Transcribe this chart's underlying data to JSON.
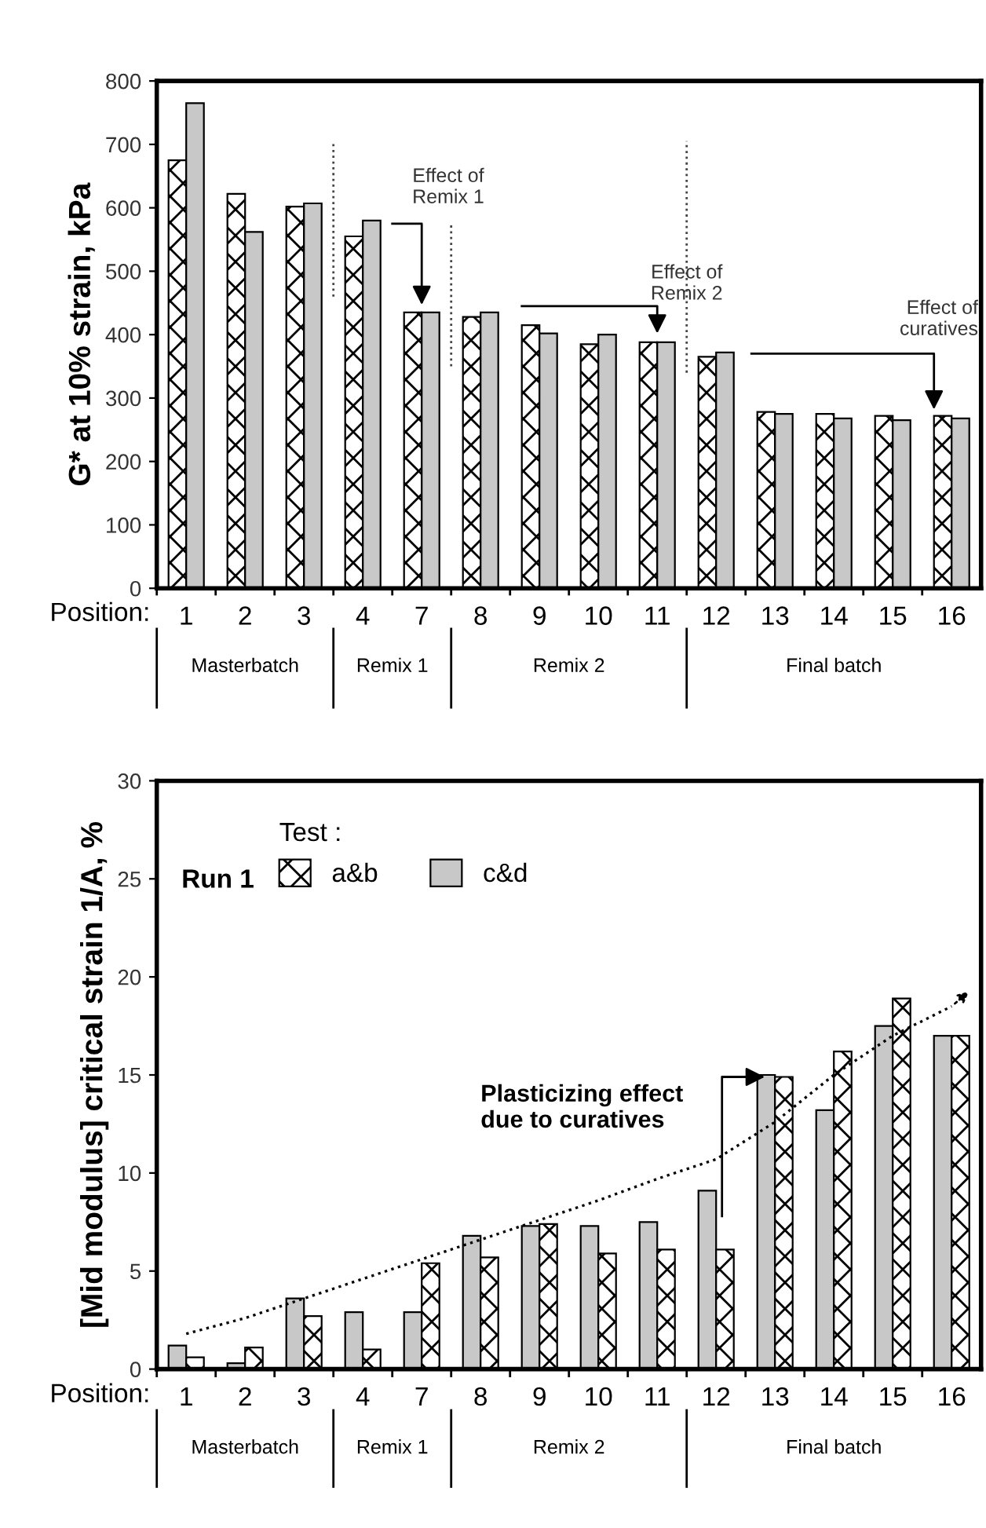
{
  "chart_data": [
    {
      "type": "bar",
      "ylabel": "G* at 10% strain, kPa",
      "xlabel": "Position:",
      "categories": [
        "1",
        "2",
        "3",
        "4",
        "7",
        "8",
        "9",
        "10",
        "11",
        "12",
        "13",
        "14",
        "15",
        "16"
      ],
      "ylim": [
        0,
        800
      ],
      "yticks": [
        0,
        100,
        200,
        300,
        400,
        500,
        600,
        700,
        800
      ],
      "grid": false,
      "series": [
        {
          "color": "#000000",
          "values": [
            675,
            622,
            602,
            555,
            435,
            428,
            415,
            385,
            388,
            365,
            278,
            275,
            272,
            272
          ]
        },
        {
          "color": "#c8c8c8",
          "values": [
            765,
            562,
            607,
            580,
            435,
            435,
            402,
            400,
            388,
            372,
            275,
            268,
            265,
            268
          ]
        }
      ],
      "annotations": [
        "Masterbatch",
        "Remix 1",
        "Remix 2",
        "Final batch",
        "Effect of\nRemix 1",
        "Effect of\nRemix 2",
        "Effect of\ncuratives"
      ]
    },
    {
      "type": "bar",
      "ylabel": "[Mid modulus] critical strain 1/A, %",
      "xlabel": "Position:",
      "legend_title": "Test :",
      "legend": "top left",
      "categories": [
        "1",
        "2",
        "3",
        "4",
        "7",
        "8",
        "9",
        "10",
        "11",
        "12",
        "13",
        "14",
        "15",
        "16"
      ],
      "ylim": [
        0,
        30
      ],
      "yticks": [
        0,
        5,
        10,
        15,
        20,
        25,
        30
      ],
      "grid": false,
      "series": [
        {
          "name": "c&d",
          "color": "#c8c8c8",
          "values": [
            1.2,
            0.3,
            3.6,
            2.9,
            2.9,
            6.8,
            7.3,
            7.3,
            7.5,
            9.1,
            15.0,
            13.2,
            17.5,
            17.0
          ]
        },
        {
          "name": "a&b",
          "color": "#000000",
          "values": [
            0.6,
            1.1,
            2.7,
            1.0,
            5.4,
            5.7,
            7.4,
            5.9,
            6.1,
            6.1,
            14.9,
            16.2,
            18.9,
            17.0
          ]
        },
        {
          "type": "line",
          "color": "#000000",
          "line_style": "dotted",
          "values": [
            1.8,
            2.6,
            3.6,
            4.6,
            5.6,
            6.6,
            7.6,
            8.6,
            9.7,
            10.7,
            12.6,
            15.0,
            17.0,
            18.5
          ]
        }
      ],
      "annotations": [
        "Masterbatch",
        "Remix 1",
        "Remix 2",
        "Final batch",
        "Plasticizing effect\ndue to curatives",
        "Run 1"
      ]
    }
  ]
}
